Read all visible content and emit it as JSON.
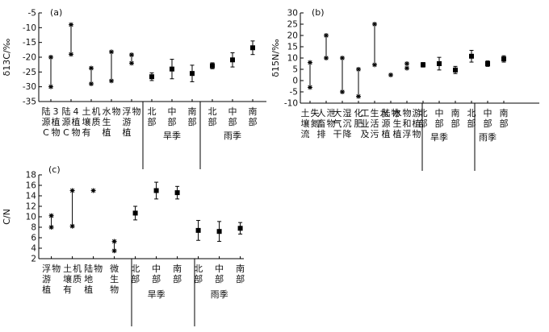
{
  "chart_data": [
    {
      "panel": "(a)",
      "type": "scatter",
      "ylabel": "δ13C/‰",
      "ylim": [
        -35,
        -5
      ],
      "yticks": [
        -35,
        -30,
        -25,
        -20,
        -15,
        -10,
        -5
      ],
      "groups": [
        {
          "label": "",
          "section": "source",
          "categories": [
            "陆源C3植物",
            "陆源C4植物",
            "土壤有机质",
            "水生植物",
            "浮游植物"
          ]
        },
        {
          "label": "旱季",
          "section": "season",
          "categories": [
            "北部",
            "中部",
            "南部"
          ]
        },
        {
          "label": "雨季",
          "section": "season",
          "categories": [
            "北部",
            "中部",
            "南部"
          ]
        }
      ],
      "source_ranges": [
        [
          -30.0,
          -20.0
        ],
        [
          -19.0,
          -9.0
        ],
        [
          -29.0,
          -23.7
        ],
        [
          -28.0,
          -18.2
        ],
        [
          -22.0,
          -19.2
        ]
      ],
      "season_points": [
        {
          "mean": -26.6,
          "err": 1.3
        },
        {
          "mean": -24.0,
          "err": 3.3
        },
        {
          "mean": -25.5,
          "err": 2.8
        },
        {
          "mean": -22.9,
          "err": 1.0
        },
        {
          "mean": -20.9,
          "err": 2.4
        },
        {
          "mean": -16.8,
          "err": 2.3
        }
      ]
    },
    {
      "panel": "(b)",
      "type": "scatter",
      "ylabel": "δ15N/‰",
      "ylim": [
        -10,
        30
      ],
      "yticks": [
        -10,
        -5,
        0,
        5,
        10,
        15,
        20,
        25,
        30
      ],
      "groups": [
        {
          "label": "",
          "section": "source",
          "categories": [
            "土壤流失氮",
            "人畜排泄物",
            "大气干湿沉降",
            "化肥",
            "工业及生活污水",
            "陆源植物",
            "水生植物和浮游植物"
          ]
        },
        {
          "label": "旱季",
          "section": "season",
          "categories": [
            "北部",
            "中部",
            "南部"
          ]
        },
        {
          "label": "雨季",
          "section": "season",
          "categories": [
            "北部",
            "中部",
            "南部"
          ]
        }
      ],
      "source_ranges": [
        [
          -3.0,
          8.0
        ],
        [
          10.0,
          20.0
        ],
        [
          -5.0,
          10.0
        ],
        [
          -7.0,
          5.0
        ],
        [
          7.0,
          25.0
        ],
        [
          2.5,
          2.5
        ],
        [
          5.5,
          7.5
        ]
      ],
      "season_points": [
        {
          "mean": 7.0,
          "err": 1.0
        },
        {
          "mean": 7.5,
          "err": 2.8
        },
        {
          "mean": 4.7,
          "err": 1.6
        },
        {
          "mean": 10.8,
          "err": 2.6
        },
        {
          "mean": 7.5,
          "err": 1.2
        },
        {
          "mean": 9.6,
          "err": 1.4
        }
      ]
    },
    {
      "panel": "(c)",
      "type": "scatter",
      "ylabel": "C/N",
      "ylim": [
        2,
        18
      ],
      "yticks": [
        2,
        4,
        6,
        8,
        10,
        12,
        14,
        16,
        18
      ],
      "groups": [
        {
          "label": "",
          "section": "source",
          "categories": [
            "浮游植物",
            "土壤有机质",
            "陆地植物",
            "微生物"
          ]
        },
        {
          "label": "旱季",
          "section": "season",
          "categories": [
            "北部",
            "中部",
            "南部"
          ]
        },
        {
          "label": "雨季",
          "section": "season",
          "categories": [
            "北部",
            "中部",
            "南部"
          ]
        }
      ],
      "source_ranges": [
        [
          8.0,
          10.2
        ],
        [
          8.2,
          15.0
        ],
        [
          15.0,
          15.0
        ],
        [
          3.5,
          5.3
        ]
      ],
      "season_points": [
        {
          "mean": 10.7,
          "err": 1.3
        },
        {
          "mean": 15.0,
          "err": 1.6
        },
        {
          "mean": 14.6,
          "err": 1.2
        },
        {
          "mean": 7.4,
          "err": 1.9
        },
        {
          "mean": 7.2,
          "err": 1.9
        },
        {
          "mean": 7.8,
          "err": 1.1
        }
      ]
    }
  ]
}
